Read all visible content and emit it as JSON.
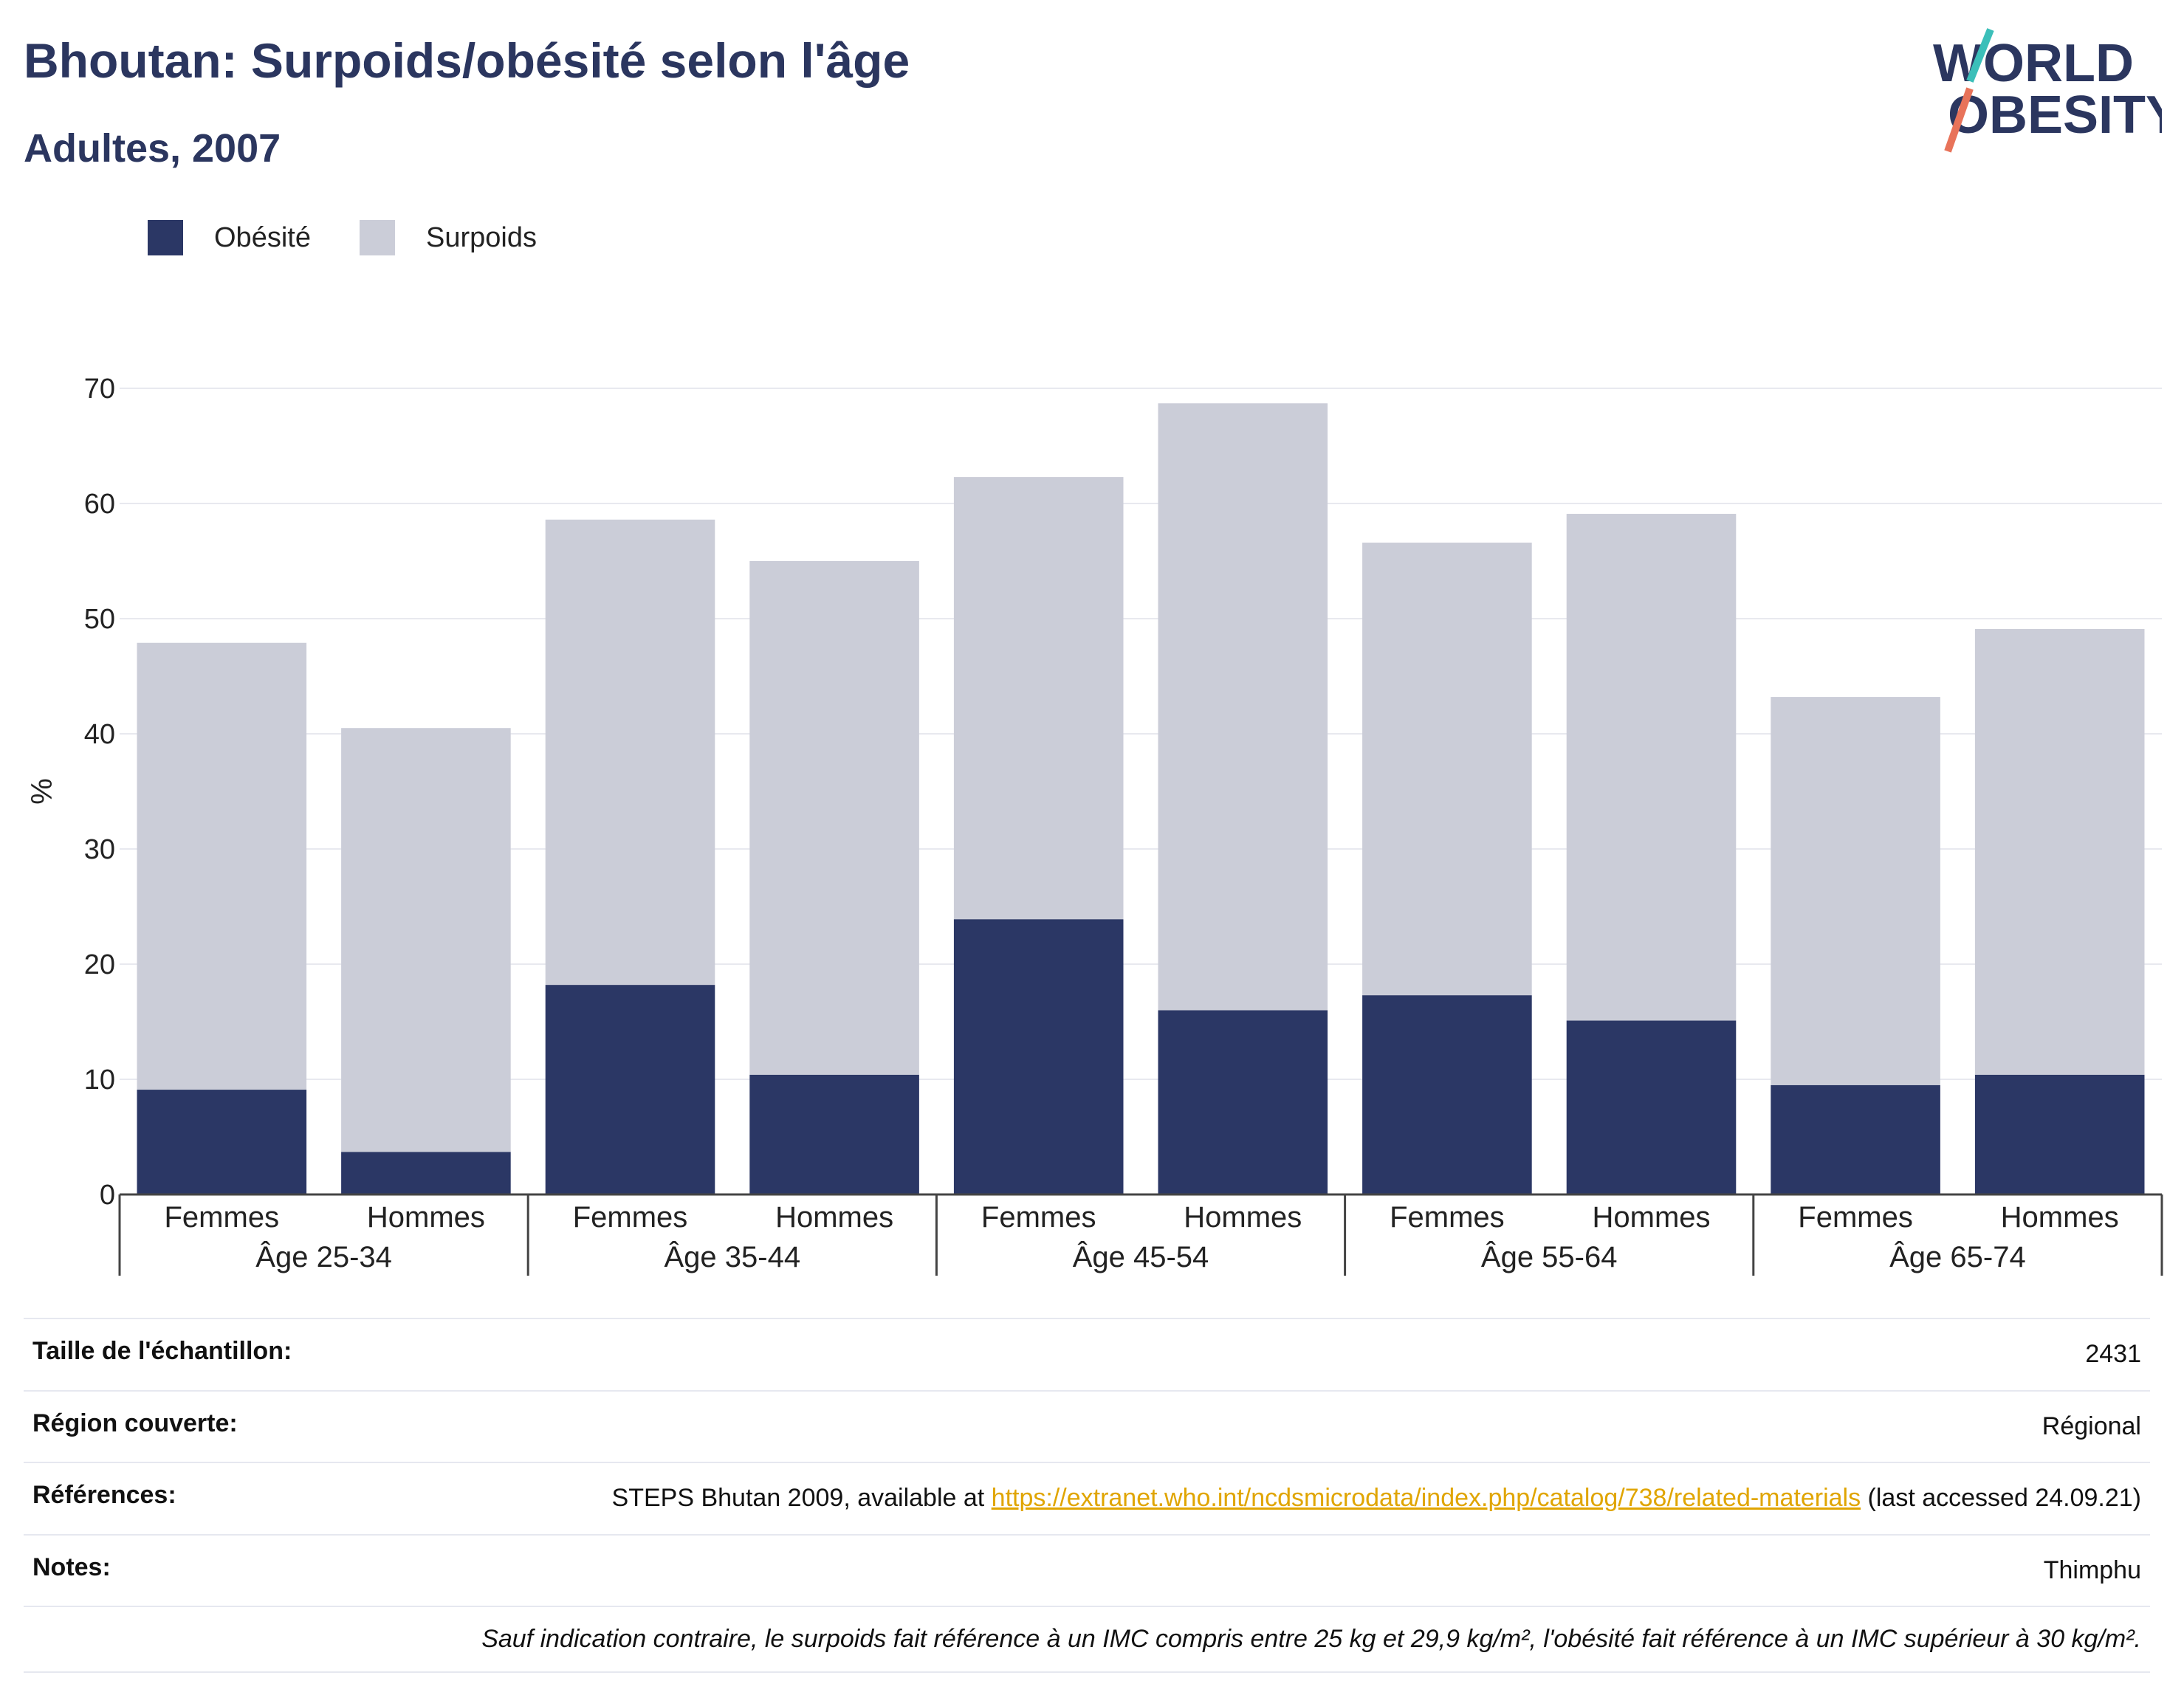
{
  "header": {
    "title": "Bhoutan: Surpoids/obésité selon l'âge",
    "subtitle": "Adultes, 2007"
  },
  "logo": {
    "line1": "WORLD",
    "line2": "OBESITY"
  },
  "chart_data": {
    "type": "bar",
    "stacked": true,
    "ylabel": "%",
    "ylim": [
      0,
      70
    ],
    "yticks": [
      0,
      10,
      20,
      30,
      40,
      50,
      60,
      70
    ],
    "grid": true,
    "legend_position": "top-left",
    "groups": [
      "Âge 25-34",
      "Âge 35-44",
      "Âge 45-54",
      "Âge 55-64",
      "Âge 65-74"
    ],
    "categories": [
      "Femmes",
      "Hommes",
      "Femmes",
      "Hommes",
      "Femmes",
      "Hommes",
      "Femmes",
      "Hommes",
      "Femmes",
      "Hommes"
    ],
    "series": [
      {
        "name": "Obésité",
        "color": "#2b3765",
        "values": [
          9.1,
          3.7,
          18.2,
          10.4,
          23.9,
          16.0,
          17.3,
          15.1,
          9.5,
          10.4
        ]
      },
      {
        "name": "Surpoids",
        "color": "#cbcdd8",
        "values": [
          38.8,
          36.8,
          40.4,
          44.6,
          38.4,
          52.7,
          39.3,
          44.0,
          33.7,
          38.7
        ]
      }
    ]
  },
  "info": {
    "sample_label": "Taille de l'échantillon:",
    "sample_value": "2431",
    "region_label": "Région couverte:",
    "region_value": "Régional",
    "ref_label": "Références:",
    "ref_prefix": "STEPS Bhutan 2009, available at ",
    "ref_link": "https://extranet.who.int/ncdsmicrodata/index.php/catalog/738/related-materials",
    "ref_suffix": " (last accessed 24.09.21)",
    "notes_label": "Notes:",
    "notes_value": "Thimphu",
    "footnote": "Sauf indication contraire, le surpoids fait référence à un IMC compris entre 25 kg et 29,9 kg/m², l'obésité fait référence à un IMC supérieur à 30 kg/m²."
  }
}
